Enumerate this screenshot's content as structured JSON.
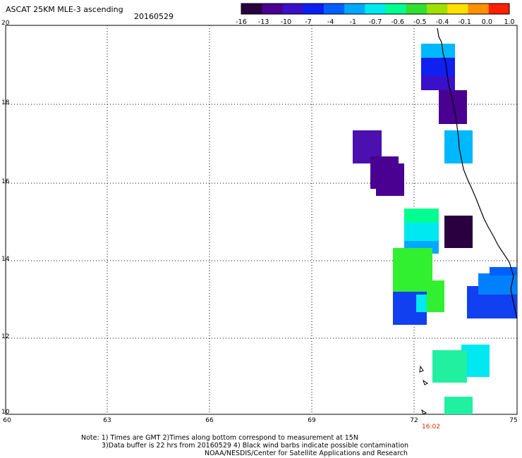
{
  "header": {
    "title": "ASCAT 25KM MLE-3 ascending",
    "date": "20160529"
  },
  "colorbar": {
    "labels": [
      "-16",
      "-13",
      "-10",
      "-7",
      "-4",
      "-1",
      "-0.7",
      "-0.6",
      "-0.5",
      "-0.4",
      "-0.1",
      "0.0",
      "1.0"
    ],
    "colors": [
      "#2a0040",
      "#4a0090",
      "#3a10c8",
      "#0a20f0",
      "#0060ff",
      "#00a8ff",
      "#00e8f0",
      "#00ff90",
      "#30e030",
      "#a0e000",
      "#ffe000",
      "#ff9000",
      "#ff2000"
    ]
  },
  "axes": {
    "lat_labels": [
      "20",
      "18",
      "16",
      "14",
      "12",
      "10"
    ],
    "lon_labels": [
      "60",
      "63",
      "66",
      "69",
      "72",
      "75"
    ],
    "time_label": "16:02"
  },
  "notes": {
    "line1": "Note: 1) Times are GMT 2)Times along bottom correspond to measurement at 15N",
    "line2": "3)Data buffer is 22 hrs from 20160529 4) Black wind barbs indicate possible contamination",
    "line3": "NOAA/NESDIS/Center for Satellite Applications and Research"
  }
}
